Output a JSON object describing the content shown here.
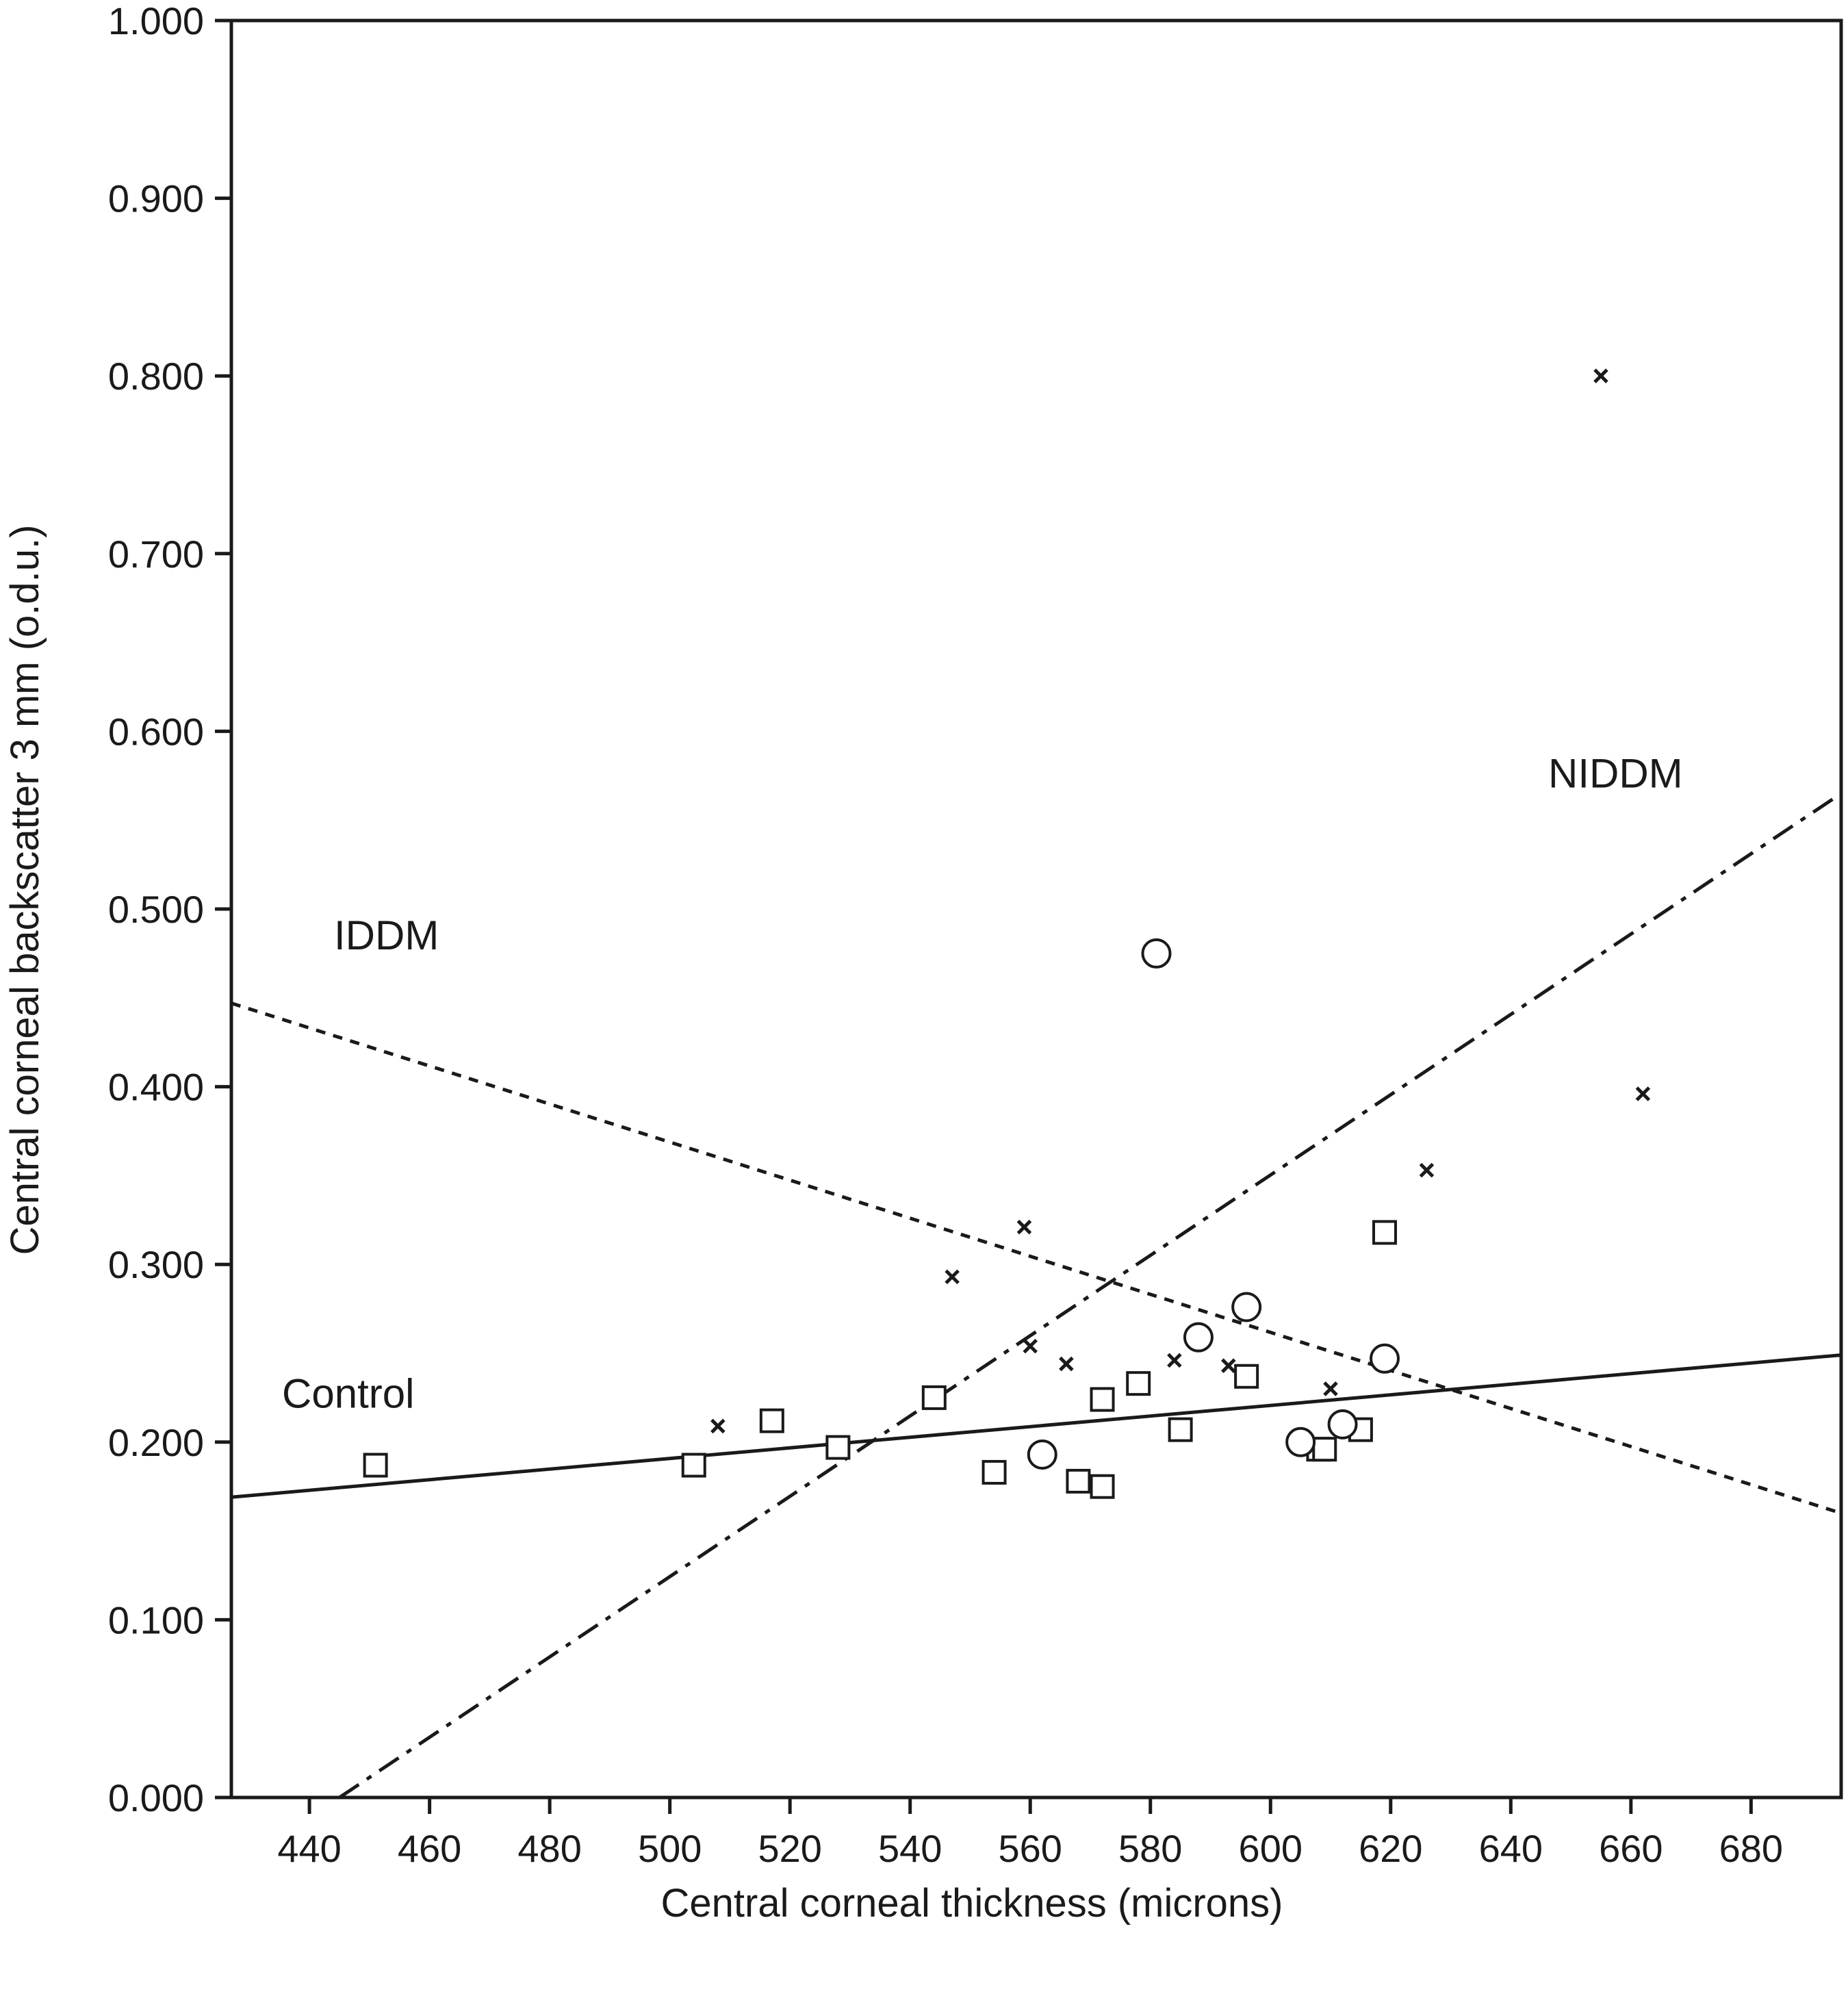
{
  "chart_data": {
    "type": "scatter",
    "xlabel": "Central corneal thickness (microns)",
    "ylabel": "Central corneal backscatter 3 mm (o.d.u.)",
    "xlim": [
      427,
      695
    ],
    "ylim": [
      0.0,
      1.0
    ],
    "x_ticks": [
      440,
      460,
      480,
      500,
      520,
      540,
      560,
      580,
      600,
      620,
      640,
      660,
      680
    ],
    "x_tick_labels": [
      "440",
      "460",
      "480",
      "500",
      "520",
      "540",
      "560",
      "580",
      "600",
      "620",
      "640",
      "660",
      "680"
    ],
    "y_ticks": [
      0.0,
      0.1,
      0.2,
      0.3,
      0.4,
      0.5,
      0.6,
      0.7,
      0.8,
      0.9,
      1.0
    ],
    "y_tick_labels": [
      "0.000",
      "0.100",
      "0.200",
      "0.300",
      "0.400",
      "0.500",
      "0.600",
      "0.700",
      "0.800",
      "0.900",
      "1.000"
    ],
    "grid": false,
    "series": [
      {
        "name": "Control",
        "marker": "square",
        "points": [
          [
            451,
            0.187
          ],
          [
            504,
            0.187
          ],
          [
            517,
            0.212
          ],
          [
            528,
            0.197
          ],
          [
            544,
            0.225
          ],
          [
            554,
            0.183
          ],
          [
            568,
            0.178
          ],
          [
            572,
            0.224
          ],
          [
            572,
            0.175
          ],
          [
            578,
            0.233
          ],
          [
            585,
            0.207
          ],
          [
            596,
            0.237
          ],
          [
            608,
            0.196
          ],
          [
            609,
            0.196
          ],
          [
            615,
            0.207
          ],
          [
            619,
            0.318
          ]
        ],
        "fit_line": {
          "x": [
            427,
            695
          ],
          "y": [
            0.169,
            0.249
          ],
          "style": "solid"
        }
      },
      {
        "name": "IDDM",
        "marker": "circle",
        "points": [
          [
            562,
            0.193
          ],
          [
            581,
            0.475
          ],
          [
            588,
            0.259
          ],
          [
            596,
            0.276
          ],
          [
            605,
            0.2
          ],
          [
            612,
            0.21
          ],
          [
            619,
            0.247
          ]
        ],
        "fit_line": {
          "x": [
            427,
            695
          ],
          "y": [
            0.447,
            0.16
          ],
          "style": "dotted"
        }
      },
      {
        "name": "NIDDM",
        "marker": "x",
        "points": [
          [
            508,
            0.209
          ],
          [
            547,
            0.293
          ],
          [
            559,
            0.321
          ],
          [
            560,
            0.254
          ],
          [
            566,
            0.244
          ],
          [
            584,
            0.246
          ],
          [
            593,
            0.243
          ],
          [
            610,
            0.23
          ],
          [
            626,
            0.353
          ],
          [
            655,
            0.8
          ],
          [
            662,
            0.396
          ]
        ],
        "fit_line": {
          "x": [
            445,
            695
          ],
          "y": [
            0.0,
            0.565
          ],
          "style": "dash-dot"
        }
      }
    ],
    "annotations": [
      "IDDM",
      "NIDDM",
      "Control"
    ]
  }
}
